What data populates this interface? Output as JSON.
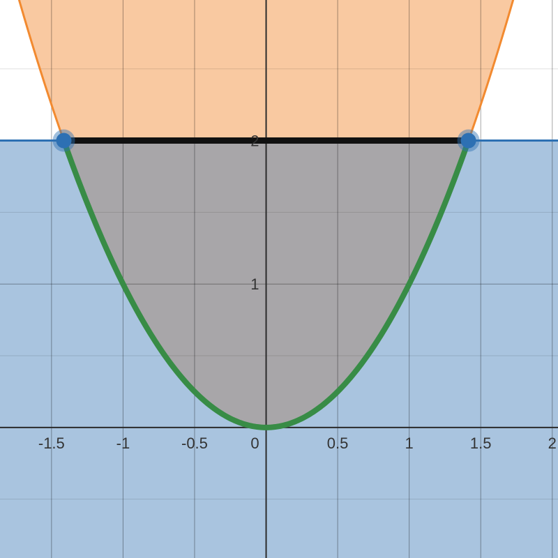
{
  "chart_data": {
    "type": "line",
    "title": "",
    "xlabel": "",
    "ylabel": "",
    "xlim": [
      -1.86,
      2.04
    ],
    "ylim": [
      -0.91,
      2.98
    ],
    "grid": true,
    "x_ticks": [
      {
        "value": -1.5,
        "label": "-1.5"
      },
      {
        "value": -1,
        "label": "-1"
      },
      {
        "value": -0.5,
        "label": "-0.5"
      },
      {
        "value": 0,
        "label": "0"
      },
      {
        "value": 0.5,
        "label": "0.5"
      },
      {
        "value": 1,
        "label": "1"
      },
      {
        "value": 1.5,
        "label": "1.5"
      },
      {
        "value": 2,
        "label": "2"
      }
    ],
    "y_ticks": [
      {
        "value": 1,
        "label": "1"
      },
      {
        "value": 2,
        "label": "2"
      }
    ],
    "series": [
      {
        "kind": "curve",
        "expression": "y = x^2",
        "region": "y >= x^2",
        "color": "#f28a30",
        "fill": "#f9c9a1"
      },
      {
        "kind": "curve",
        "expression": "y = x^2",
        "domain": [
          -1.414,
          1.414
        ],
        "color": "#388c46"
      },
      {
        "kind": "horizontal_line",
        "expression": "y = 2",
        "region": "y <= 2",
        "color": "#2d70b3",
        "fill": "#a9c4df"
      },
      {
        "kind": "segment",
        "expression": "y = 2",
        "domain": [
          -1.414,
          1.414
        ],
        "color": "#111111"
      }
    ],
    "overlap_fill": "#a8a6a9",
    "points": [
      {
        "x": -1.414,
        "y": 2,
        "color": "#2d70b3"
      },
      {
        "x": 1.414,
        "y": 2,
        "color": "#2d70b3"
      }
    ]
  }
}
